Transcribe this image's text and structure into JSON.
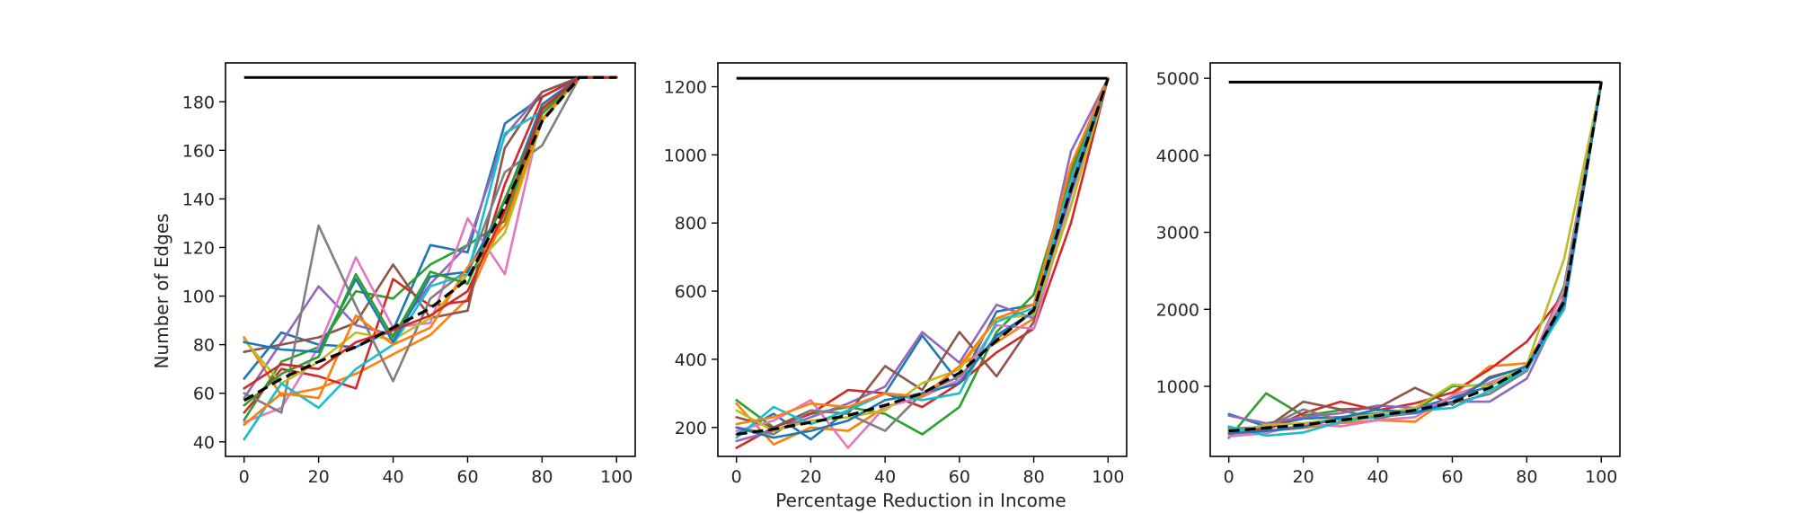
{
  "figure": {
    "ylabel": "Number of Edges",
    "xlabel": "Percentage Reduction in Income"
  },
  "colors": [
    "#1f77b4",
    "#ff7f0e",
    "#2ca02c",
    "#d62728",
    "#9467bd",
    "#8c564b",
    "#e377c2",
    "#7f7f7f",
    "#bcbd22",
    "#17becf"
  ],
  "chart_data": [
    {
      "type": "line",
      "x": [
        0,
        10,
        20,
        30,
        40,
        50,
        60,
        70,
        80,
        90,
        100
      ],
      "xlim": [
        -5,
        105
      ],
      "ylim": [
        34,
        196
      ],
      "xticks": [
        0,
        20,
        40,
        60,
        80,
        100
      ],
      "yticks": [
        40,
        60,
        80,
        100,
        120,
        140,
        160,
        180
      ],
      "upper_bound": 190,
      "mean": [
        57,
        66,
        73,
        79,
        87,
        95,
        107,
        137,
        172,
        190,
        190
      ],
      "series": [
        {
          "values": [
            66,
            85,
            80,
            79,
            86,
            121,
            118,
            171,
            182,
            190,
            190
          ]
        },
        {
          "values": [
            83,
            59,
            62,
            68,
            76,
            84,
            99,
            133,
            178,
            190,
            190
          ]
        },
        {
          "values": [
            49,
            73,
            79,
            102,
            99,
            113,
            121,
            131,
            176,
            190,
            190
          ]
        },
        {
          "values": [
            52,
            70,
            67,
            62,
            107,
            96,
            98,
            146,
            182,
            190,
            190
          ]
        },
        {
          "values": [
            58,
            81,
            104,
            88,
            84,
            105,
            121,
            166,
            184,
            190,
            190
          ]
        },
        {
          "values": [
            77,
            80,
            83,
            89,
            113,
            91,
            94,
            161,
            184,
            190,
            190
          ]
        },
        {
          "values": [
            48,
            54,
            79,
            116,
            87,
            89,
            132,
            109,
            176,
            190,
            190
          ]
        },
        {
          "values": [
            60,
            52,
            129,
            96,
            65,
            99,
            111,
            151,
            162,
            190,
            190
          ]
        },
        {
          "values": [
            82,
            64,
            73,
            85,
            82,
            91,
            109,
            126,
            172,
            190,
            190
          ]
        },
        {
          "values": [
            41,
            64,
            54,
            70,
            80,
            104,
            109,
            167,
            176,
            190,
            190
          ]
        },
        {
          "values": [
            81,
            78,
            77,
            107,
            81,
            108,
            110,
            139,
            179,
            190,
            190
          ]
        },
        {
          "values": [
            47,
            60,
            58,
            92,
            80,
            87,
            112,
            129,
            173,
            190,
            190
          ]
        },
        {
          "values": [
            55,
            68,
            75,
            109,
            83,
            110,
            105,
            140,
            175,
            190,
            190
          ]
        },
        {
          "values": [
            62,
            72,
            70,
            81,
            86,
            92,
            102,
            135,
            177,
            190,
            190
          ]
        }
      ]
    },
    {
      "type": "line",
      "x": [
        0,
        10,
        20,
        30,
        40,
        50,
        60,
        70,
        80,
        90,
        100
      ],
      "xlim": [
        -5,
        105
      ],
      "ylim": [
        115,
        1270
      ],
      "xticks": [
        0,
        20,
        40,
        60,
        80,
        100
      ],
      "yticks": [
        200,
        400,
        600,
        800,
        1000,
        1200
      ],
      "upper_bound": 1225,
      "mean": [
        180,
        195,
        215,
        235,
        265,
        300,
        360,
        455,
        545,
        900,
        1225
      ],
      "series": [
        {
          "values": [
            180,
            240,
            165,
            250,
            300,
            470,
            330,
            540,
            560,
            960,
            1225
          ]
        },
        {
          "values": [
            270,
            150,
            200,
            190,
            260,
            290,
            380,
            450,
            520,
            850,
            1225
          ]
        },
        {
          "values": [
            280,
            200,
            240,
            260,
            240,
            180,
            260,
            480,
            590,
            950,
            1225
          ]
        },
        {
          "values": [
            140,
            200,
            240,
            310,
            300,
            260,
            330,
            420,
            490,
            800,
            1225
          ]
        },
        {
          "values": [
            160,
            190,
            230,
            270,
            320,
            480,
            390,
            560,
            520,
            1010,
            1225
          ]
        },
        {
          "values": [
            230,
            200,
            250,
            240,
            380,
            310,
            480,
            350,
            510,
            900,
            1225
          ]
        },
        {
          "values": [
            190,
            220,
            280,
            140,
            260,
            290,
            340,
            500,
            490,
            880,
            1225
          ]
        },
        {
          "values": [
            200,
            180,
            250,
            240,
            190,
            300,
            350,
            460,
            540,
            930,
            1225
          ]
        },
        {
          "values": [
            250,
            190,
            220,
            230,
            250,
            330,
            370,
            520,
            530,
            850,
            1225
          ]
        },
        {
          "values": [
            170,
            260,
            210,
            250,
            300,
            280,
            300,
            510,
            550,
            920,
            1225
          ]
        },
        {
          "values": [
            200,
            170,
            190,
            220,
            280,
            300,
            330,
            470,
            540,
            890,
            1225
          ]
        },
        {
          "values": [
            210,
            230,
            270,
            260,
            300,
            290,
            380,
            520,
            560,
            970,
            1225
          ]
        }
      ]
    },
    {
      "type": "line",
      "x": [
        0,
        10,
        20,
        30,
        40,
        50,
        60,
        70,
        80,
        90,
        100
      ],
      "xlim": [
        -5,
        105
      ],
      "ylim": [
        90,
        5200
      ],
      "xticks": [
        0,
        20,
        40,
        60,
        80,
        100
      ],
      "yticks": [
        1000,
        2000,
        3000,
        4000,
        5000
      ],
      "upper_bound": 4950,
      "mean": [
        420,
        460,
        500,
        560,
        620,
        690,
        790,
        980,
        1250,
        2100,
        4950
      ],
      "series": [
        {
          "values": [
            640,
            480,
            580,
            600,
            650,
            710,
            850,
            1000,
            1250,
            2000,
            4950
          ]
        },
        {
          "values": [
            380,
            420,
            460,
            520,
            560,
            540,
            880,
            1260,
            1300,
            2100,
            4950
          ]
        },
        {
          "values": [
            330,
            910,
            620,
            690,
            580,
            690,
            1000,
            1020,
            1200,
            2300,
            4950
          ]
        },
        {
          "values": [
            460,
            430,
            650,
            800,
            690,
            780,
            920,
            1220,
            1580,
            2200,
            4950
          ]
        },
        {
          "values": [
            620,
            520,
            600,
            650,
            750,
            720,
            800,
            800,
            1100,
            2100,
            4950
          ]
        },
        {
          "values": [
            420,
            460,
            800,
            700,
            720,
            980,
            760,
            1120,
            1250,
            2000,
            4950
          ]
        },
        {
          "values": [
            350,
            390,
            510,
            480,
            560,
            600,
            880,
            1050,
            1230,
            2250,
            4950
          ]
        },
        {
          "values": [
            450,
            470,
            700,
            560,
            600,
            650,
            780,
            900,
            1200,
            2150,
            4950
          ]
        },
        {
          "values": [
            400,
            500,
            520,
            580,
            640,
            720,
            1020,
            1000,
            1280,
            2650,
            4950
          ]
        },
        {
          "values": [
            480,
            360,
            400,
            540,
            610,
            680,
            720,
            940,
            1220,
            2000,
            4950
          ]
        },
        {
          "values": [
            390,
            420,
            470,
            590,
            700,
            650,
            800,
            1100,
            1260,
            2050,
            4950
          ]
        }
      ]
    }
  ]
}
